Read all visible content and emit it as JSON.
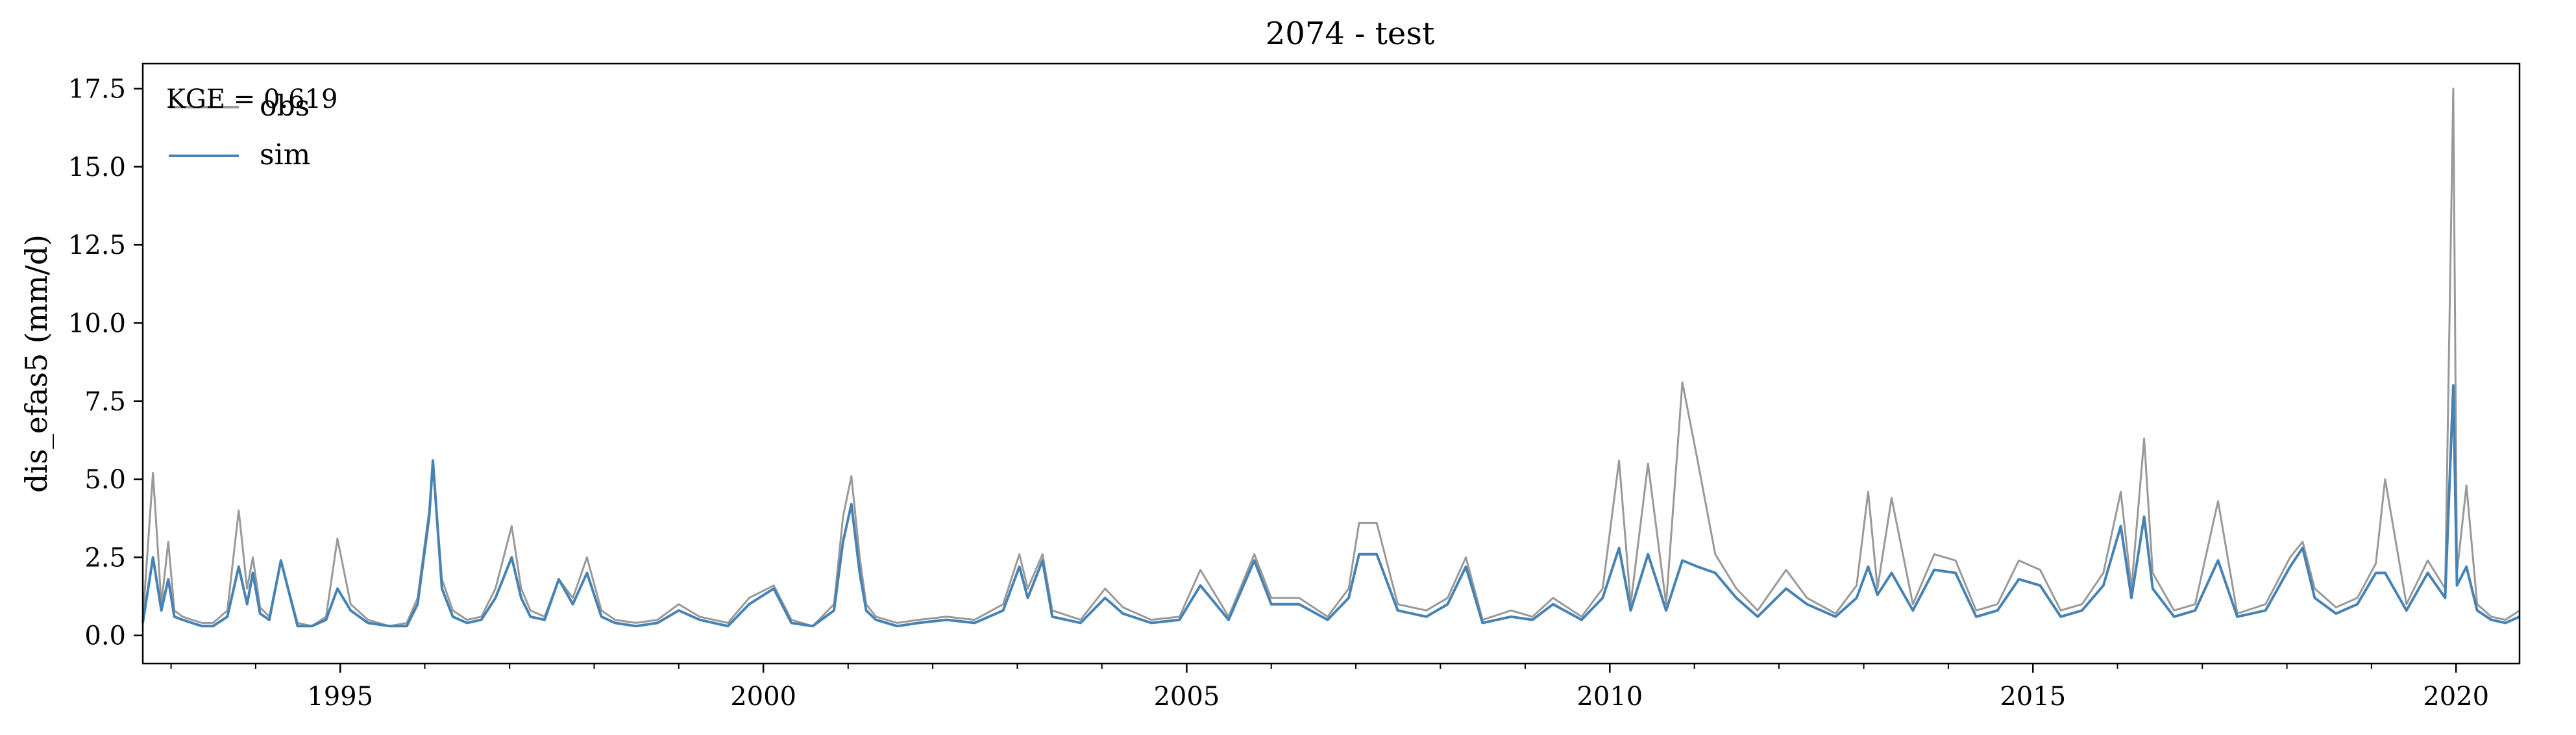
{
  "chart_data": {
    "type": "line",
    "title": "2074 - test",
    "xlabel": "",
    "ylabel": "dis_efas5 (mm/d)",
    "x_range": [
      "1992-09-01",
      "2020-10-01"
    ],
    "ylim": [
      -0.9,
      18.3
    ],
    "x_ticks": [
      "1995",
      "2000",
      "2005",
      "2010",
      "2015",
      "2020"
    ],
    "y_ticks": [
      "0.0",
      "2.5",
      "5.0",
      "7.5",
      "10.0",
      "12.5",
      "15.0",
      "17.5"
    ],
    "grid": false,
    "legend": {
      "placement": "top-left"
    },
    "annotation": "KGE = 0.619",
    "colors": {
      "obs": "#999999",
      "sim": "#4682b4"
    },
    "series": [
      {
        "name": "obs",
        "x": [
          "1992-09-01",
          "1992-10-15",
          "1992-11-20",
          "1992-12-20",
          "1993-01-15",
          "1993-02-20",
          "1993-04-01",
          "1993-05-15",
          "1993-07-01",
          "1993-09-01",
          "1993-10-20",
          "1993-11-25",
          "1993-12-20",
          "1994-01-20",
          "1994-03-01",
          "1994-04-20",
          "1994-07-01",
          "1994-09-01",
          "1994-11-01",
          "1994-12-20",
          "1995-02-15",
          "1995-05-01",
          "1995-08-01",
          "1995-10-15",
          "1995-12-01",
          "1996-01-20",
          "1996-02-05",
          "1996-03-15",
          "1996-05-01",
          "1996-07-01",
          "1996-09-01",
          "1996-11-01",
          "1997-01-10",
          "1997-02-20",
          "1997-04-01",
          "1997-06-01",
          "1997-08-01",
          "1997-10-01",
          "1997-12-01",
          "1998-02-01",
          "1998-04-01",
          "1998-07-01",
          "1998-10-01",
          "1999-01-01",
          "1999-04-01",
          "1999-08-01",
          "1999-11-01",
          "2000-02-15",
          "2000-05-01",
          "2000-08-01",
          "2000-11-01",
          "2000-12-10",
          "2001-01-15",
          "2001-02-20",
          "2001-03-20",
          "2001-05-01",
          "2001-08-01",
          "2001-11-01",
          "2002-03-01",
          "2002-07-01",
          "2002-11-01",
          "2003-01-10",
          "2003-02-15",
          "2003-04-20",
          "2003-06-01",
          "2003-10-01",
          "2004-01-15",
          "2004-04-01",
          "2004-08-01",
          "2004-12-01",
          "2005-03-01",
          "2005-07-01",
          "2005-10-20",
          "2006-01-01",
          "2006-05-01",
          "2006-09-01",
          "2006-12-01",
          "2007-01-15",
          "2007-04-01",
          "2007-07-01",
          "2007-11-01",
          "2008-02-01",
          "2008-04-20",
          "2008-07-01",
          "2008-11-01",
          "2009-02-01",
          "2009-05-01",
          "2009-09-01",
          "2009-12-01",
          "2010-02-10",
          "2010-04-01",
          "2010-06-15",
          "2010-09-01",
          "2010-11-10",
          "2011-01-15",
          "2011-04-01",
          "2011-07-01",
          "2011-10-01",
          "2012-02-01",
          "2012-05-01",
          "2012-09-01",
          "2012-12-01",
          "2013-01-20",
          "2013-03-01",
          "2013-05-01",
          "2013-08-01",
          "2013-11-01",
          "2014-02-01",
          "2014-05-01",
          "2014-08-01",
          "2014-11-01",
          "2015-02-01",
          "2015-05-01",
          "2015-08-01",
          "2015-11-01",
          "2016-01-15",
          "2016-03-01",
          "2016-04-25",
          "2016-06-01",
          "2016-09-01",
          "2016-12-01",
          "2017-03-10",
          "2017-06-01",
          "2017-10-01",
          "2018-01-15",
          "2018-03-10",
          "2018-05-01",
          "2018-08-01",
          "2018-11-01",
          "2019-01-20",
          "2019-03-01",
          "2019-06-01",
          "2019-09-01",
          "2019-11-15",
          "2019-12-20",
          "2020-01-05",
          "2020-02-15",
          "2020-04-01",
          "2020-06-01",
          "2020-08-01",
          "2020-10-01"
        ],
        "values": [
          0.5,
          5.2,
          1.0,
          3.0,
          0.8,
          0.6,
          0.5,
          0.4,
          0.4,
          0.8,
          4.0,
          1.5,
          2.5,
          0.9,
          0.6,
          2.4,
          0.4,
          0.3,
          0.6,
          3.1,
          1.0,
          0.5,
          0.3,
          0.4,
          1.2,
          4.0,
          5.5,
          1.8,
          0.8,
          0.5,
          0.6,
          1.5,
          3.5,
          1.5,
          0.8,
          0.6,
          1.8,
          1.2,
          2.5,
          0.8,
          0.5,
          0.4,
          0.5,
          1.0,
          0.6,
          0.4,
          1.2,
          1.6,
          0.5,
          0.3,
          1.0,
          3.8,
          5.1,
          2.5,
          1.0,
          0.6,
          0.4,
          0.5,
          0.6,
          0.5,
          1.0,
          2.6,
          1.5,
          2.6,
          0.8,
          0.5,
          1.5,
          0.9,
          0.5,
          0.6,
          2.1,
          0.6,
          2.6,
          1.2,
          1.2,
          0.6,
          1.5,
          3.6,
          3.6,
          1.0,
          0.8,
          1.2,
          2.5,
          0.5,
          0.8,
          0.6,
          1.2,
          0.6,
          1.5,
          5.6,
          1.0,
          5.5,
          1.0,
          8.1,
          5.6,
          2.6,
          1.5,
          0.8,
          2.1,
          1.2,
          0.7,
          1.6,
          4.6,
          1.5,
          4.4,
          1.0,
          2.6,
          2.4,
          0.8,
          1.0,
          2.4,
          2.1,
          0.8,
          1.0,
          2.0,
          4.6,
          1.5,
          6.3,
          2.0,
          0.8,
          1.0,
          4.3,
          0.7,
          1.0,
          2.5,
          3.0,
          1.5,
          0.9,
          1.2,
          2.3,
          5.0,
          1.0,
          2.4,
          1.5,
          17.5,
          2.0,
          4.8,
          1.0,
          0.6,
          0.5,
          0.8
        ]
      },
      {
        "name": "sim",
        "x": [
          "1992-09-01",
          "1992-10-15",
          "1992-11-20",
          "1992-12-20",
          "1993-01-15",
          "1993-02-20",
          "1993-04-01",
          "1993-05-15",
          "1993-07-01",
          "1993-09-01",
          "1993-10-20",
          "1993-11-25",
          "1993-12-20",
          "1994-01-20",
          "1994-03-01",
          "1994-04-20",
          "1994-07-01",
          "1994-09-01",
          "1994-11-01",
          "1994-12-20",
          "1995-02-15",
          "1995-05-01",
          "1995-08-01",
          "1995-10-15",
          "1995-12-01",
          "1996-01-20",
          "1996-02-05",
          "1996-03-15",
          "1996-05-01",
          "1996-07-01",
          "1996-09-01",
          "1996-11-01",
          "1997-01-10",
          "1997-02-20",
          "1997-04-01",
          "1997-06-01",
          "1997-08-01",
          "1997-10-01",
          "1997-12-01",
          "1998-02-01",
          "1998-04-01",
          "1998-07-01",
          "1998-10-01",
          "1999-01-01",
          "1999-04-01",
          "1999-08-01",
          "1999-11-01",
          "2000-02-15",
          "2000-05-01",
          "2000-08-01",
          "2000-11-01",
          "2000-12-10",
          "2001-01-15",
          "2001-02-20",
          "2001-03-20",
          "2001-05-01",
          "2001-08-01",
          "2001-11-01",
          "2002-03-01",
          "2002-07-01",
          "2002-11-01",
          "2003-01-10",
          "2003-02-15",
          "2003-04-20",
          "2003-06-01",
          "2003-10-01",
          "2004-01-15",
          "2004-04-01",
          "2004-08-01",
          "2004-12-01",
          "2005-03-01",
          "2005-07-01",
          "2005-10-20",
          "2006-01-01",
          "2006-05-01",
          "2006-09-01",
          "2006-12-01",
          "2007-01-15",
          "2007-04-01",
          "2007-07-01",
          "2007-11-01",
          "2008-02-01",
          "2008-04-20",
          "2008-07-01",
          "2008-11-01",
          "2009-02-01",
          "2009-05-01",
          "2009-09-01",
          "2009-12-01",
          "2010-02-10",
          "2010-04-01",
          "2010-06-15",
          "2010-09-01",
          "2010-11-10",
          "2011-01-15",
          "2011-04-01",
          "2011-07-01",
          "2011-10-01",
          "2012-02-01",
          "2012-05-01",
          "2012-09-01",
          "2012-12-01",
          "2013-01-20",
          "2013-03-01",
          "2013-05-01",
          "2013-08-01",
          "2013-11-01",
          "2014-02-01",
          "2014-05-01",
          "2014-08-01",
          "2014-11-01",
          "2015-02-01",
          "2015-05-01",
          "2015-08-01",
          "2015-11-01",
          "2016-01-15",
          "2016-03-01",
          "2016-04-25",
          "2016-06-01",
          "2016-09-01",
          "2016-12-01",
          "2017-03-10",
          "2017-06-01",
          "2017-10-01",
          "2018-01-15",
          "2018-03-10",
          "2018-05-01",
          "2018-08-01",
          "2018-11-01",
          "2019-01-20",
          "2019-03-01",
          "2019-06-01",
          "2019-09-01",
          "2019-11-15",
          "2019-12-20",
          "2020-01-05",
          "2020-02-15",
          "2020-04-01",
          "2020-06-01",
          "2020-08-01",
          "2020-10-01"
        ],
        "values": [
          0.4,
          2.5,
          0.8,
          1.8,
          0.6,
          0.5,
          0.4,
          0.3,
          0.3,
          0.6,
          2.2,
          1.0,
          2.0,
          0.7,
          0.5,
          2.4,
          0.3,
          0.3,
          0.5,
          1.5,
          0.8,
          0.4,
          0.3,
          0.3,
          1.0,
          3.8,
          5.6,
          1.5,
          0.6,
          0.4,
          0.5,
          1.2,
          2.5,
          1.2,
          0.6,
          0.5,
          1.8,
          1.0,
          2.0,
          0.6,
          0.4,
          0.3,
          0.4,
          0.8,
          0.5,
          0.3,
          1.0,
          1.5,
          0.4,
          0.3,
          0.8,
          3.0,
          4.2,
          2.0,
          0.8,
          0.5,
          0.3,
          0.4,
          0.5,
          0.4,
          0.8,
          2.2,
          1.2,
          2.4,
          0.6,
          0.4,
          1.2,
          0.7,
          0.4,
          0.5,
          1.6,
          0.5,
          2.4,
          1.0,
          1.0,
          0.5,
          1.2,
          2.6,
          2.6,
          0.8,
          0.6,
          1.0,
          2.2,
          0.4,
          0.6,
          0.5,
          1.0,
          0.5,
          1.2,
          2.8,
          0.8,
          2.6,
          0.8,
          2.4,
          2.2,
          2.0,
          1.2,
          0.6,
          1.5,
          1.0,
          0.6,
          1.2,
          2.2,
          1.3,
          2.0,
          0.8,
          2.1,
          2.0,
          0.6,
          0.8,
          1.8,
          1.6,
          0.6,
          0.8,
          1.6,
          3.5,
          1.2,
          3.8,
          1.5,
          0.6,
          0.8,
          2.4,
          0.6,
          0.8,
          2.2,
          2.8,
          1.2,
          0.7,
          1.0,
          2.0,
          2.0,
          0.8,
          2.0,
          1.2,
          8.0,
          1.6,
          2.2,
          0.8,
          0.5,
          0.4,
          0.6
        ]
      }
    ]
  }
}
